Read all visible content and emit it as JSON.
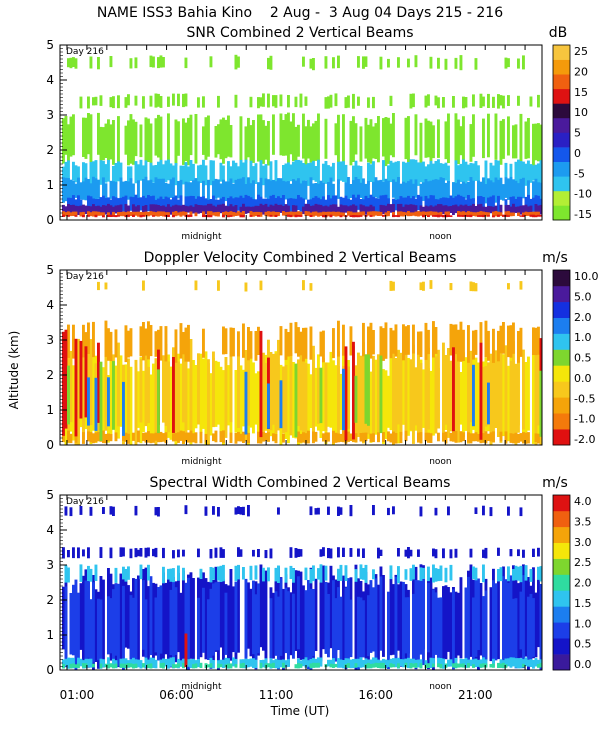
{
  "header": "NAME ISS3 Bahia Kino    2 Aug -  3 Aug 04 Days 215 - 216",
  "chart_data": [
    {
      "type": "heatmap",
      "title": "SNR Combined 2 Vertical Beams",
      "units": "dB",
      "day_label": "Day 216",
      "ylabel": "",
      "ylim": [
        0,
        5
      ],
      "yticks": [
        "0",
        "1",
        "2",
        "3",
        "4",
        "5"
      ],
      "xlim": [
        0,
        24
      ],
      "markers": [
        "midnight",
        "noon"
      ],
      "colorbar_labels": [
        "-15",
        "-10",
        "-5",
        "0",
        "5",
        "10",
        "15",
        "20",
        "25"
      ],
      "colorbar_colors": [
        "#7ee62e",
        "#b3ee35",
        "#2fc4ef",
        "#1c9bf0",
        "#1457ec",
        "#2a20c4",
        "#4a1a9c",
        "#2c0a3c",
        "#de1212",
        "#f06010",
        "#f59a0b",
        "#f7c53e"
      ],
      "layers": [
        {
          "color": "#7ee62e",
          "bottom": 1.6,
          "top": 3.0,
          "density": 0.65
        },
        {
          "color": "#7ee62e",
          "bottom": 3.2,
          "top": 3.6,
          "density": 0.35
        },
        {
          "color": "#7ee62e",
          "bottom": 4.3,
          "top": 4.7,
          "density": 0.2
        },
        {
          "color": "#2fc4ef",
          "bottom": 1.0,
          "top": 1.7,
          "density": 0.8
        },
        {
          "color": "#1c9bf0",
          "bottom": 0.5,
          "top": 1.2,
          "density": 0.85
        },
        {
          "color": "#1457ec",
          "bottom": 0.2,
          "top": 0.7,
          "density": 0.9
        },
        {
          "color": "#4a1a9c",
          "bottom": 0.15,
          "top": 0.45,
          "density": 0.9
        },
        {
          "color": "#f06010",
          "bottom": 0.1,
          "top": 0.25,
          "density": 0.85
        },
        {
          "color": "#de1212",
          "bottom": 0.08,
          "top": 0.15,
          "density": 0.5
        }
      ]
    },
    {
      "type": "heatmap",
      "title": "Doppler Velocity Combined 2 Vertical Beams",
      "units": "m/s",
      "day_label": "Day 216",
      "ylabel": "Altitude (km)",
      "ylim": [
        0,
        5
      ],
      "yticks": [
        "0",
        "1",
        "2",
        "3",
        "4",
        "5"
      ],
      "xlim": [
        0,
        24
      ],
      "markers": [
        "midnight",
        "noon"
      ],
      "colorbar_labels": [
        "-2.0",
        "-1.0",
        "-0.5",
        "0.0",
        "0.5",
        "1.0",
        "2.0",
        "5.0",
        "10.0"
      ],
      "colorbar_colors": [
        "#e01010",
        "#f47a0b",
        "#f5a40a",
        "#f7c81c",
        "#f5e60a",
        "#7ed62e",
        "#2fc4ef",
        "#1c7ef0",
        "#1430e0",
        "#4a1a9c",
        "#2c0a3c"
      ],
      "layers": [
        {
          "color": "#f5e60a",
          "bottom": 0.1,
          "top": 2.6,
          "density": 0.92
        },
        {
          "color": "#f7c81c",
          "bottom": 0.1,
          "top": 2.9,
          "density": 0.55
        },
        {
          "color": "#f5a40a",
          "bottom": 2.4,
          "top": 3.5,
          "density": 0.5
        },
        {
          "color": "#f5a40a",
          "bottom": 0.05,
          "top": 0.4,
          "density": 0.7
        },
        {
          "color": "#f7c81c",
          "bottom": 4.4,
          "top": 4.7,
          "density": 0.15
        },
        {
          "color": "#e01010",
          "bottom": 0.2,
          "top": 3.2,
          "density": 0.06
        },
        {
          "color": "#7ed62e",
          "bottom": 0.2,
          "top": 2.5,
          "density": 0.05
        },
        {
          "color": "#1c7ef0",
          "bottom": 0.2,
          "top": 2.2,
          "density": 0.04
        }
      ]
    },
    {
      "type": "heatmap",
      "title": "Spectral Width Combined 2 Vertical Beams",
      "units": "m/s",
      "day_label": "Day 216",
      "ylabel": "",
      "ylim": [
        0,
        5
      ],
      "yticks": [
        "0",
        "1",
        "2",
        "3",
        "4",
        "5"
      ],
      "xlim": [
        0,
        24
      ],
      "markers": [
        "midnight",
        "noon"
      ],
      "xlabel": "Time (UT)",
      "xticks": [
        "01:00",
        "06:00",
        "11:00",
        "16:00",
        "21:00"
      ],
      "colorbar_labels": [
        "0.0",
        "0.5",
        "1.0",
        "1.5",
        "2.0",
        "2.5",
        "3.0",
        "3.5",
        "4.0"
      ],
      "colorbar_colors": [
        "#3a1a9c",
        "#1414c8",
        "#1c3ee8",
        "#1c7ef0",
        "#2fc4ef",
        "#2fdca0",
        "#7ed62e",
        "#f5e60a",
        "#f5a40a",
        "#f06010",
        "#de1212"
      ],
      "layers": [
        {
          "color": "#1414c8",
          "bottom": 0.1,
          "top": 2.9,
          "density": 0.82
        },
        {
          "color": "#1c3ee8",
          "bottom": 0.1,
          "top": 2.6,
          "density": 0.55
        },
        {
          "color": "#2fc4ef",
          "bottom": 2.5,
          "top": 3.0,
          "density": 0.35
        },
        {
          "color": "#2fc4ef",
          "bottom": 0.05,
          "top": 0.35,
          "density": 0.85
        },
        {
          "color": "#2fdca0",
          "bottom": 0.05,
          "top": 0.2,
          "density": 0.5
        },
        {
          "color": "#1414c8",
          "bottom": 3.2,
          "top": 3.5,
          "density": 0.35
        },
        {
          "color": "#1414c8",
          "bottom": 4.4,
          "top": 4.7,
          "density": 0.15
        },
        {
          "color": "#de1212",
          "bottom": 0.1,
          "top": 1.0,
          "density": 0.02
        }
      ]
    }
  ]
}
